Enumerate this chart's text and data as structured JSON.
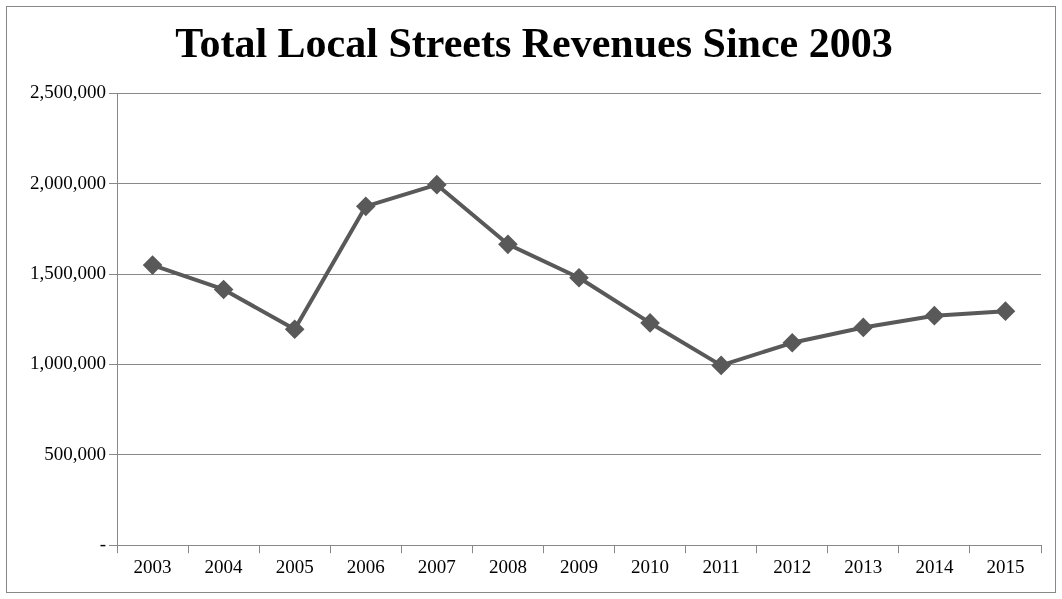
{
  "chart_data": {
    "type": "line",
    "title": "Total Local Streets Revenues Since 2003",
    "categories": [
      "2003",
      "2004",
      "2005",
      "2006",
      "2007",
      "2008",
      "2009",
      "2010",
      "2011",
      "2012",
      "2013",
      "2014",
      "2015"
    ],
    "series": [
      {
        "color": "#595959",
        "values": [
          1550000,
          1415000,
          1195000,
          1875000,
          1995000,
          1665000,
          1480000,
          1230000,
          995000,
          1120000,
          1205000,
          1270000,
          1295000
        ]
      }
    ],
    "ylim": [
      0,
      2500000
    ],
    "yticks": [
      {
        "value": 0,
        "label": "-"
      },
      {
        "value": 500000,
        "label": "500,000"
      },
      {
        "value": 1000000,
        "label": "1,000,000"
      },
      {
        "value": 1500000,
        "label": "1,500,000"
      },
      {
        "value": 2000000,
        "label": "2,000,000"
      },
      {
        "value": 2500000,
        "label": "2,500,000"
      }
    ],
    "grid": "y",
    "legend": false,
    "marker": "diamond",
    "line_style": "solid"
  }
}
